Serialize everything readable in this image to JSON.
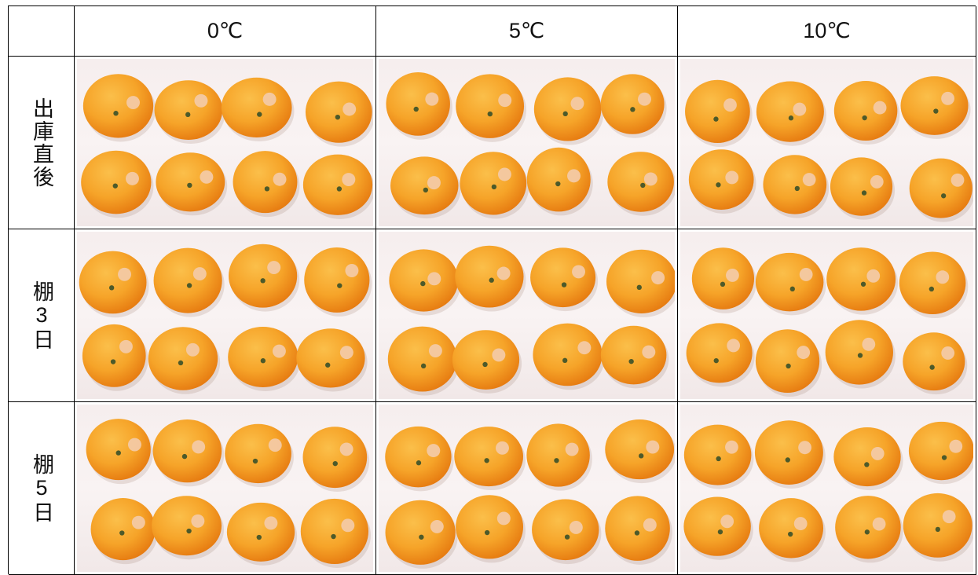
{
  "table": {
    "corner": "",
    "columns": [
      "0℃",
      "5℃",
      "10℃"
    ],
    "rows": [
      {
        "label": "出庫直後"
      },
      {
        "label": "棚3日"
      },
      {
        "label": "棚5日"
      }
    ]
  },
  "colors": {
    "tray": "#f7f0f0",
    "fruit_light": "#f6a429",
    "fruit_dark": "#e5780f",
    "label_sticker": "#f3c9a4",
    "grid_line": "#000000"
  },
  "photos": {
    "description_icon": "orange-fruit-icon",
    "fruit_per_photo": 8
  }
}
